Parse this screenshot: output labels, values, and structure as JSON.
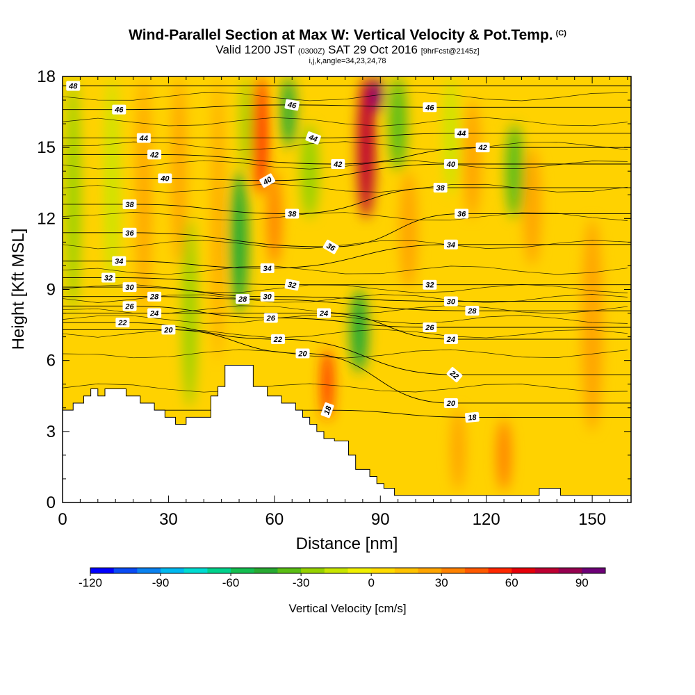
{
  "title": {
    "main": "Wind-Parallel Section at Max W: Vertical Velocity & Pot.Temp.",
    "copyright": "(C)",
    "valid_prefix": "Valid 1200 JST",
    "valid_utc": "(0300Z)",
    "valid_date": "SAT 29 Oct 2016",
    "forecast": "[9hrFcst@2145z]",
    "indices": "i,j,k,angle=34,23,24,78"
  },
  "colors": {
    "scale": [
      "#0000ff",
      "#0a4bf5",
      "#0a82f0",
      "#00b9f0",
      "#00dcd2",
      "#00d28c",
      "#14be50",
      "#28aa32",
      "#5abe14",
      "#96d200",
      "#c8e600",
      "#f0f000",
      "#ffdc00",
      "#ffc300",
      "#ffa500",
      "#ff8200",
      "#ff5a00",
      "#ff2800",
      "#e6000a",
      "#be0032",
      "#960050",
      "#6e0078"
    ],
    "terrain": "#ffffff",
    "contour": "#000000"
  },
  "chart_data": {
    "type": "heatmap",
    "xlabel": "Distance [nm]",
    "ylabel": "Height [Kft MSL]",
    "xlim": [
      0,
      161
    ],
    "ylim": [
      0,
      18
    ],
    "x_ticks": [
      0,
      30,
      60,
      90,
      120,
      150
    ],
    "y_ticks": [
      0,
      3,
      6,
      9,
      12,
      15,
      18
    ],
    "colorbar": {
      "label": "Vertical Velocity [cm/s]",
      "min": -120,
      "max": 100,
      "step": 10,
      "ticks": [
        -120,
        -90,
        -60,
        -30,
        0,
        30,
        60,
        90
      ]
    },
    "vertical_velocity_bands": [
      {
        "x": 3,
        "w": 4,
        "w_cms": -28,
        "y0": 8,
        "y1": 18
      },
      {
        "x": 14,
        "w": 4,
        "w_cms": -15,
        "y0": 9,
        "y1": 18
      },
      {
        "x": 23,
        "w": 4,
        "w_cms": 22,
        "y0": 8,
        "y1": 18
      },
      {
        "x": 33,
        "w": 4,
        "w_cms": 28,
        "y0": 10,
        "y1": 18
      },
      {
        "x": 36,
        "w": 4,
        "w_cms": -22,
        "y0": 4,
        "y1": 12
      },
      {
        "x": 44,
        "w": 3,
        "w_cms": 25,
        "y0": 6,
        "y1": 18
      },
      {
        "x": 50,
        "w": 5,
        "w_cms": -45,
        "y0": 8,
        "y1": 14
      },
      {
        "x": 52,
        "w": 3,
        "w_cms": -30,
        "y0": 14,
        "y1": 18
      },
      {
        "x": 56,
        "w": 4,
        "w_cms": 55,
        "y0": 13,
        "y1": 18
      },
      {
        "x": 60,
        "w": 4,
        "w_cms": 30,
        "y0": 10,
        "y1": 14
      },
      {
        "x": 64,
        "w": 4,
        "w_cms": -45,
        "y0": 15,
        "y1": 18
      },
      {
        "x": 70,
        "w": 5,
        "w_cms": -25,
        "y0": 12,
        "y1": 16
      },
      {
        "x": 75,
        "w": 3,
        "w_cms": 50,
        "y0": 3.5,
        "y1": 6.5
      },
      {
        "x": 84,
        "w": 5,
        "w_cms": -50,
        "y0": 5.5,
        "y1": 9
      },
      {
        "x": 86,
        "w": 5,
        "w_cms": 75,
        "y0": 12,
        "y1": 18
      },
      {
        "x": 89,
        "w": 3,
        "w_cms": 95,
        "y0": 16.5,
        "y1": 18
      },
      {
        "x": 95,
        "w": 5,
        "w_cms": -40,
        "y0": 14,
        "y1": 18
      },
      {
        "x": 98,
        "w": 5,
        "w_cms": 22,
        "y0": 9,
        "y1": 14
      },
      {
        "x": 110,
        "w": 4,
        "w_cms": -20,
        "y0": 13,
        "y1": 18
      },
      {
        "x": 116,
        "w": 5,
        "w_cms": 28,
        "y0": 12,
        "y1": 17
      },
      {
        "x": 128,
        "w": 5,
        "w_cms": -35,
        "y0": 12,
        "y1": 16
      },
      {
        "x": 133,
        "w": 5,
        "w_cms": 25,
        "y0": 10,
        "y1": 15
      },
      {
        "x": 150,
        "w": 6,
        "w_cms": 20,
        "y0": 3,
        "y1": 12
      },
      {
        "x": 112,
        "w": 4,
        "w_cms": 25,
        "y0": 0.5,
        "y1": 4
      },
      {
        "x": 125,
        "w": 4,
        "w_cms": 30,
        "y0": 0.5,
        "y1": 3.5
      }
    ],
    "terrain_profile": [
      [
        0,
        3.9
      ],
      [
        3,
        3.9
      ],
      [
        3,
        4.2
      ],
      [
        6,
        4.2
      ],
      [
        6,
        4.5
      ],
      [
        8,
        4.5
      ],
      [
        8,
        4.8
      ],
      [
        10,
        4.8
      ],
      [
        10,
        4.5
      ],
      [
        12,
        4.5
      ],
      [
        12,
        4.8
      ],
      [
        18,
        4.8
      ],
      [
        18,
        4.5
      ],
      [
        22,
        4.5
      ],
      [
        22,
        4.2
      ],
      [
        26,
        4.2
      ],
      [
        26,
        3.9
      ],
      [
        29,
        3.9
      ],
      [
        29,
        3.6
      ],
      [
        32,
        3.6
      ],
      [
        32,
        3.3
      ],
      [
        35,
        3.3
      ],
      [
        35,
        3.6
      ],
      [
        42,
        3.6
      ],
      [
        42,
        4.5
      ],
      [
        44,
        4.5
      ],
      [
        44,
        4.9
      ],
      [
        46,
        4.9
      ],
      [
        46,
        5.8
      ],
      [
        54,
        5.8
      ],
      [
        54,
        4.9
      ],
      [
        58,
        4.9
      ],
      [
        58,
        4.5
      ],
      [
        62,
        4.5
      ],
      [
        62,
        4.2
      ],
      [
        66,
        4.2
      ],
      [
        66,
        3.9
      ],
      [
        68,
        3.9
      ],
      [
        68,
        3.6
      ],
      [
        70,
        3.6
      ],
      [
        70,
        3.3
      ],
      [
        72,
        3.3
      ],
      [
        72,
        3.0
      ],
      [
        74,
        3.0
      ],
      [
        74,
        2.7
      ],
      [
        77,
        2.7
      ],
      [
        77,
        2.6
      ],
      [
        81,
        2.6
      ],
      [
        81,
        2.0
      ],
      [
        83,
        2.0
      ],
      [
        83,
        1.4
      ],
      [
        87,
        1.4
      ],
      [
        87,
        1.1
      ],
      [
        89,
        1.1
      ],
      [
        89,
        0.8
      ],
      [
        91,
        0.8
      ],
      [
        91,
        0.6
      ],
      [
        94,
        0.6
      ],
      [
        94,
        0.3
      ],
      [
        135,
        0.3
      ],
      [
        135,
        0.6
      ],
      [
        141,
        0.6
      ],
      [
        141,
        0.3
      ],
      [
        161,
        0.3
      ]
    ],
    "potential_temperature_contours": [
      {
        "level": 18,
        "label": "18",
        "label_x": 75,
        "label_y": 3.9,
        "label_rot": -70
      },
      {
        "level": 18,
        "label": "18",
        "label_x": 116,
        "label_y": 3.6,
        "label_rot": -5
      },
      {
        "level": 20,
        "label": "20",
        "label_x": 30,
        "label_y": 7.3,
        "label_rot": 0
      },
      {
        "level": 20,
        "label": "20",
        "label_x": 68,
        "label_y": 6.3,
        "label_rot": 0
      },
      {
        "level": 20,
        "label": "20",
        "label_x": 110,
        "label_y": 4.2,
        "label_rot": 0
      },
      {
        "level": 22,
        "label": "22",
        "label_x": 17,
        "label_y": 7.6,
        "label_rot": 0
      },
      {
        "level": 22,
        "label": "22",
        "label_x": 61,
        "label_y": 6.9,
        "label_rot": 0
      },
      {
        "level": 22,
        "label": "22",
        "label_x": 111,
        "label_y": 5.4,
        "label_rot": 40
      },
      {
        "level": 24,
        "label": "24",
        "label_x": 26,
        "label_y": 8.0,
        "label_rot": 0
      },
      {
        "level": 24,
        "label": "24",
        "label_x": 74,
        "label_y": 8.0,
        "label_rot": 0
      },
      {
        "level": 24,
        "label": "24",
        "label_x": 110,
        "label_y": 6.9,
        "label_rot": 0
      },
      {
        "level": 26,
        "label": "26",
        "label_x": 19,
        "label_y": 8.3,
        "label_rot": 0
      },
      {
        "level": 26,
        "label": "26",
        "label_x": 59,
        "label_y": 7.8,
        "label_rot": 0
      },
      {
        "level": 26,
        "label": "26",
        "label_x": 104,
        "label_y": 7.4,
        "label_rot": 0
      },
      {
        "level": 28,
        "label": "28",
        "label_x": 26,
        "label_y": 8.7,
        "label_rot": 0
      },
      {
        "level": 28,
        "label": "28",
        "label_x": 51,
        "label_y": 8.6,
        "label_rot": 0
      },
      {
        "level": 28,
        "label": "28",
        "label_x": 116,
        "label_y": 8.1,
        "label_rot": 0
      },
      {
        "level": 30,
        "label": "30",
        "label_x": 19,
        "label_y": 9.1,
        "label_rot": 0
      },
      {
        "level": 30,
        "label": "30",
        "label_x": 58,
        "label_y": 8.7,
        "label_rot": 0
      },
      {
        "level": 30,
        "label": "30",
        "label_x": 110,
        "label_y": 8.5,
        "label_rot": 0
      },
      {
        "level": 32,
        "label": "32",
        "label_x": 13,
        "label_y": 9.5,
        "label_rot": 0
      },
      {
        "level": 32,
        "label": "32",
        "label_x": 65,
        "label_y": 9.2,
        "label_rot": 10
      },
      {
        "level": 32,
        "label": "32",
        "label_x": 104,
        "label_y": 9.2,
        "label_rot": 0
      },
      {
        "level": 34,
        "label": "34",
        "label_x": 16,
        "label_y": 10.2,
        "label_rot": 0
      },
      {
        "level": 34,
        "label": "34",
        "label_x": 58,
        "label_y": 9.9,
        "label_rot": 0
      },
      {
        "level": 34,
        "label": "34",
        "label_x": 110,
        "label_y": 10.9,
        "label_rot": 0
      },
      {
        "level": 36,
        "label": "36",
        "label_x": 19,
        "label_y": 11.4,
        "label_rot": 0
      },
      {
        "level": 36,
        "label": "36",
        "label_x": 76,
        "label_y": 10.8,
        "label_rot": 30
      },
      {
        "level": 36,
        "label": "36",
        "label_x": 113,
        "label_y": 12.2,
        "label_rot": 0
      },
      {
        "level": 38,
        "label": "38",
        "label_x": 19,
        "label_y": 12.6,
        "label_rot": 0
      },
      {
        "level": 38,
        "label": "38",
        "label_x": 65,
        "label_y": 12.2,
        "label_rot": 0
      },
      {
        "level": 38,
        "label": "38",
        "label_x": 107,
        "label_y": 13.3,
        "label_rot": 0
      },
      {
        "level": 40,
        "label": "40",
        "label_x": 29,
        "label_y": 13.7,
        "label_rot": 0
      },
      {
        "level": 40,
        "label": "40",
        "label_x": 58,
        "label_y": 13.6,
        "label_rot": -30
      },
      {
        "level": 40,
        "label": "40",
        "label_x": 110,
        "label_y": 14.3,
        "label_rot": 0
      },
      {
        "level": 42,
        "label": "42",
        "label_x": 26,
        "label_y": 14.7,
        "label_rot": 0
      },
      {
        "level": 42,
        "label": "42",
        "label_x": 78,
        "label_y": 14.3,
        "label_rot": 0
      },
      {
        "level": 42,
        "label": "42",
        "label_x": 119,
        "label_y": 15.0,
        "label_rot": 0
      },
      {
        "level": 44,
        "label": "44",
        "label_x": 23,
        "label_y": 15.4,
        "label_rot": 0
      },
      {
        "level": 44,
        "label": "44",
        "label_x": 71,
        "label_y": 15.4,
        "label_rot": 20
      },
      {
        "level": 44,
        "label": "44",
        "label_x": 113,
        "label_y": 15.6,
        "label_rot": 0
      },
      {
        "level": 46,
        "label": "46",
        "label_x": 16,
        "label_y": 16.6,
        "label_rot": 0
      },
      {
        "level": 46,
        "label": "46",
        "label_x": 65,
        "label_y": 16.8,
        "label_rot": 10
      },
      {
        "level": 46,
        "label": "46",
        "label_x": 104,
        "label_y": 16.7,
        "label_rot": 0
      },
      {
        "level": 48,
        "label": "48",
        "label_x": 3,
        "label_y": 17.6,
        "label_rot": 0
      }
    ]
  }
}
